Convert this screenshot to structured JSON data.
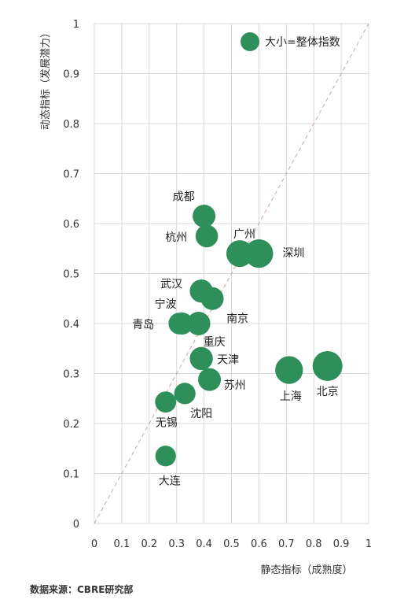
{
  "chart_data": {
    "type": "scatter",
    "title": "",
    "xlabel": "静态指标（成熟度）",
    "ylabel": "动态指标（发展潜力）",
    "xlim": [
      0,
      1
    ],
    "ylim": [
      0,
      1
    ],
    "xticks": [
      "0",
      "0.1",
      "0.2",
      "0.3",
      "0.4",
      "0.5",
      "0.6",
      "0.7",
      "0.8",
      "0.9",
      "1"
    ],
    "yticks": [
      "0",
      "0.1",
      "0.2",
      "0.3",
      "0.4",
      "0.5",
      "0.6",
      "0.7",
      "0.8",
      "0.9",
      "1"
    ],
    "grid": true,
    "diagonal_reference": true,
    "legend": "大小=整体指数",
    "color": "#2f8f5b",
    "points": [
      {
        "label": "成都",
        "x": 0.4,
        "y": 0.615,
        "size": 0.5
      },
      {
        "label": "杭州",
        "x": 0.41,
        "y": 0.575,
        "size": 0.48
      },
      {
        "label": "广州",
        "x": 0.53,
        "y": 0.54,
        "size": 0.78
      },
      {
        "label": "深圳",
        "x": 0.6,
        "y": 0.54,
        "size": 0.9
      },
      {
        "label": "武汉",
        "x": 0.39,
        "y": 0.465,
        "size": 0.52
      },
      {
        "label": "南京",
        "x": 0.43,
        "y": 0.45,
        "size": 0.5
      },
      {
        "label": "宁波",
        "x": 0.32,
        "y": 0.4,
        "size": 0.45
      },
      {
        "label": "青岛",
        "x": 0.31,
        "y": 0.4,
        "size": 0.42
      },
      {
        "label": "重庆",
        "x": 0.38,
        "y": 0.4,
        "size": 0.55
      },
      {
        "label": "天津",
        "x": 0.39,
        "y": 0.33,
        "size": 0.52
      },
      {
        "label": "苏州",
        "x": 0.42,
        "y": 0.288,
        "size": 0.5
      },
      {
        "label": "上海",
        "x": 0.71,
        "y": 0.307,
        "size": 0.85
      },
      {
        "label": "北京",
        "x": 0.85,
        "y": 0.315,
        "size": 1.0
      },
      {
        "label": "沈阳",
        "x": 0.33,
        "y": 0.26,
        "size": 0.4
      },
      {
        "label": "无锡",
        "x": 0.26,
        "y": 0.243,
        "size": 0.38
      },
      {
        "label": "大连",
        "x": 0.26,
        "y": 0.135,
        "size": 0.35
      }
    ]
  },
  "source": "数据来源：CBRE研究部"
}
